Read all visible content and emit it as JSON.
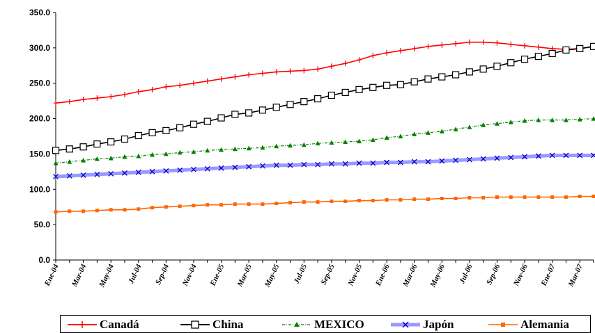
{
  "chart_data": {
    "type": "line",
    "title": "",
    "xlabel": "",
    "ylabel": "",
    "ylim": [
      0,
      350
    ],
    "yticks": [
      "0.0",
      "50.0",
      "100.0",
      "150.0",
      "200.0",
      "250.0",
      "300.0",
      "350.0"
    ],
    "xtick_labels": [
      "Ene-04",
      "Mar-04",
      "May-04",
      "Jul-04",
      "Sep-04",
      "Nov-04",
      "Ene-05",
      "Mar-05",
      "May-05",
      "Jul-05",
      "Sep-05",
      "Nov-05",
      "Ene-06",
      "Mar-06",
      "May-06",
      "Jul-06",
      "Sep-06",
      "Nov-06",
      "Ene-07",
      "Mar-07"
    ],
    "x": [
      "Ene-04",
      "Feb-04",
      "Mar-04",
      "Abr-04",
      "May-04",
      "Jun-04",
      "Jul-04",
      "Ago-04",
      "Sep-04",
      "Oct-04",
      "Nov-04",
      "Dic-04",
      "Ene-05",
      "Feb-05",
      "Mar-05",
      "Abr-05",
      "May-05",
      "Jun-05",
      "Jul-05",
      "Ago-05",
      "Sep-05",
      "Oct-05",
      "Nov-05",
      "Dic-05",
      "Ene-06",
      "Feb-06",
      "Mar-06",
      "Abr-06",
      "May-06",
      "Jun-06",
      "Jul-06",
      "Ago-06",
      "Sep-06",
      "Oct-06",
      "Nov-06",
      "Dic-06",
      "Ene-07",
      "Feb-07",
      "Mar-07",
      "Abr-07"
    ],
    "legend_position": "bottom",
    "series": [
      {
        "name": "Canadá",
        "color": "#FF0000",
        "marker": "plus",
        "values": [
          222,
          224,
          227,
          229,
          231,
          234,
          238,
          241,
          245,
          247,
          250,
          253,
          256,
          259,
          262,
          264,
          266,
          267,
          268,
          270,
          274,
          278,
          283,
          289,
          293,
          296,
          299,
          302,
          304,
          306,
          308,
          308,
          307,
          305,
          303,
          301,
          299,
          298,
          299,
          302
        ]
      },
      {
        "name": "China",
        "color": "#000000",
        "marker": "square",
        "values": [
          155,
          157,
          160,
          164,
          167,
          171,
          176,
          180,
          183,
          187,
          192,
          196,
          201,
          206,
          208,
          212,
          216,
          220,
          224,
          228,
          233,
          237,
          241,
          244,
          247,
          248,
          252,
          256,
          259,
          262,
          266,
          270,
          274,
          279,
          284,
          288,
          292,
          297,
          299,
          302
        ]
      },
      {
        "name": "MEXICO",
        "color": "#008000",
        "marker": "triangle",
        "values": [
          137,
          139,
          141,
          143,
          144,
          146,
          147,
          149,
          150,
          152,
          153,
          155,
          156,
          157,
          158,
          159,
          161,
          162,
          163,
          165,
          166,
          167,
          168,
          170,
          173,
          175,
          178,
          180,
          182,
          185,
          188,
          191,
          193,
          195,
          197,
          198,
          198,
          198,
          199,
          200
        ]
      },
      {
        "name": "Japón",
        "color": "#6666FF",
        "marker": "x",
        "values": [
          118,
          119,
          120,
          121,
          122,
          123,
          124,
          125,
          126,
          127,
          128,
          129,
          130,
          131,
          132,
          133,
          134,
          134,
          135,
          135,
          136,
          136,
          137,
          137,
          138,
          138,
          139,
          139,
          140,
          141,
          142,
          143,
          144,
          145,
          146,
          147,
          148,
          148,
          148,
          148
        ]
      },
      {
        "name": "Alemania",
        "color": "#FF6600",
        "marker": "square-small",
        "values": [
          68,
          69,
          69,
          70,
          71,
          71,
          72,
          74,
          75,
          76,
          77,
          78,
          78,
          79,
          79,
          79,
          80,
          81,
          82,
          82,
          83,
          83,
          84,
          84,
          85,
          85,
          86,
          86,
          87,
          87,
          88,
          88,
          89,
          89,
          89,
          89,
          89,
          89,
          90,
          90
        ]
      }
    ]
  }
}
